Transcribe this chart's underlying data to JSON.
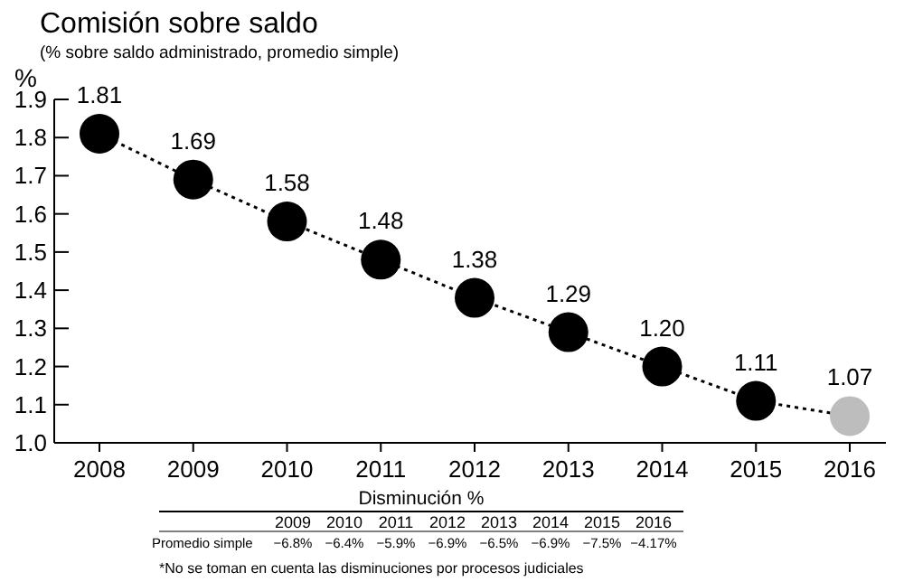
{
  "chart_data": {
    "type": "line",
    "title": "Comisión sobre saldo",
    "subtitle": "(% sobre saldo administrado, promedio simple)",
    "ylabel": "%",
    "categories": [
      "2008",
      "2009",
      "2010",
      "2011",
      "2012",
      "2013",
      "2014",
      "2015",
      "2016"
    ],
    "series": [
      {
        "value_labels": [
          "1.81",
          "1.69",
          "1.58",
          "1.48",
          "1.38",
          "1.29",
          "1.20",
          "1.11",
          "1.07"
        ],
        "color": "#000000",
        "colors": [
          "#000000",
          "#000000",
          "#000000",
          "#000000",
          "#000000",
          "#000000",
          "#000000",
          "#000000",
          "#bdbdbd"
        ],
        "values": [
          1.81,
          1.69,
          1.58,
          1.48,
          1.38,
          1.29,
          1.2,
          1.11,
          1.07
        ]
      }
    ],
    "ylim": [
      1.0,
      1.9
    ],
    "yticks": [
      {
        "value": 1.0,
        "label": "1.0"
      },
      1.1,
      1.2,
      1.3,
      1.4,
      1.5,
      1.6,
      1.7,
      1.8,
      1.9
    ],
    "marker": "circle",
    "line_style": "dotted",
    "grid": false,
    "annotations": [
      "Disminución %",
      "Promedio simple",
      "−6.8%",
      "−6.4%",
      "−5.9%",
      "−6.9%",
      "−6.5%",
      "−6.9%",
      "−7.5%",
      "−4.17%",
      "*No se toman en cuenta las disminuciones por procesos judiciales"
    ]
  }
}
